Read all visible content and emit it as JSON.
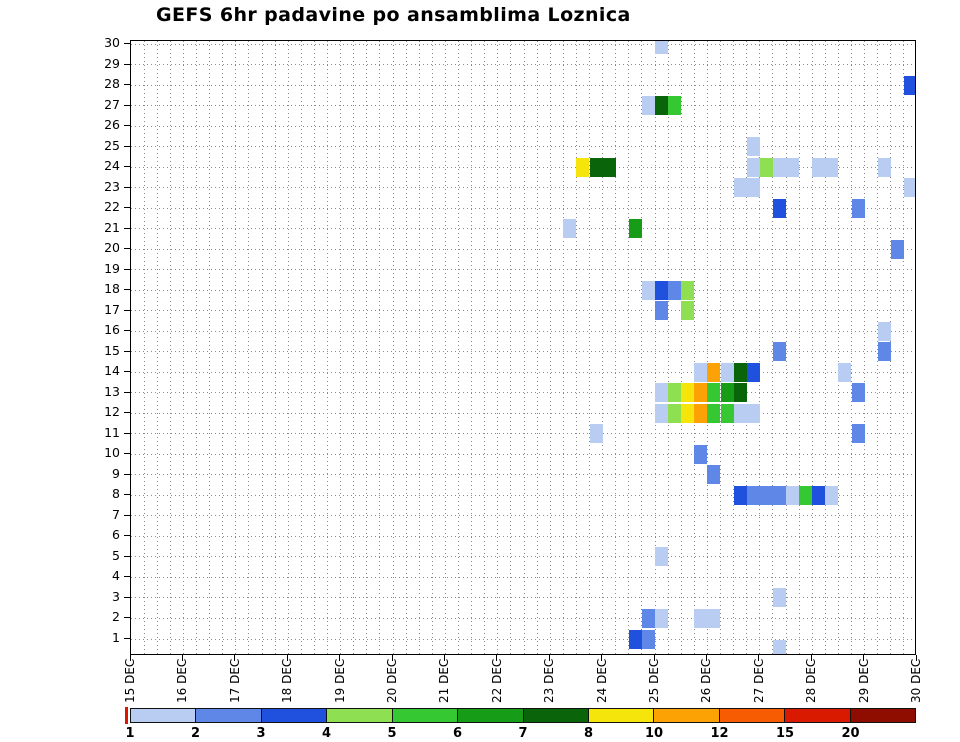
{
  "chart_data": {
    "type": "heatmap",
    "title": "GEFS 6hr padavine po ansamblima Loznica",
    "x_range_days": [
      0,
      15
    ],
    "day_offset_origin": "15 DEC",
    "cell_width_hours": 6,
    "y_range": [
      1,
      30
    ],
    "grid": "dotted",
    "x_tick_labels": [
      "15 DEC",
      "16 DEC",
      "17 DEC",
      "18 DEC",
      "19 DEC",
      "20 DEC",
      "21 DEC",
      "22 DEC",
      "23 DEC",
      "24 DEC",
      "25 DEC",
      "26 DEC",
      "27 DEC",
      "28 DEC",
      "29 DEC",
      "30 DEC"
    ],
    "y_tick_labels": [
      30,
      29,
      28,
      27,
      26,
      25,
      24,
      23,
      22,
      21,
      20,
      19,
      18,
      17,
      16,
      15,
      14,
      13,
      12,
      11,
      10,
      9,
      8,
      7,
      6,
      5,
      4,
      3,
      2,
      1
    ],
    "colorbar": {
      "position": "bottom",
      "tick_labels": [
        "1",
        "2",
        "3",
        "4",
        "5",
        "6",
        "7",
        "8",
        "10",
        "12",
        "15",
        "20"
      ],
      "colors": [
        "#b9cdf3",
        "#5e87e8",
        "#2050de",
        "#8fdf53",
        "#35c832",
        "#169c16",
        "#0a650a",
        "#f5e50a",
        "#fda205",
        "#f75c02",
        "#da1a00",
        "#8f0d00"
      ]
    },
    "cells": [
      {
        "member": 30,
        "day": 10.0,
        "level": 1
      },
      {
        "member": 28,
        "day": 14.75,
        "level": 3
      },
      {
        "member": 27,
        "day": 9.75,
        "level": 1
      },
      {
        "member": 27,
        "day": 10.0,
        "level": 7
      },
      {
        "member": 27,
        "day": 10.25,
        "level": 5
      },
      {
        "member": 25,
        "day": 11.75,
        "level": 1
      },
      {
        "member": 24,
        "day": 8.5,
        "level": 8
      },
      {
        "member": 24,
        "day": 8.75,
        "level": 7
      },
      {
        "member": 24,
        "day": 9.0,
        "level": 7
      },
      {
        "member": 24,
        "day": 11.75,
        "level": 1
      },
      {
        "member": 24,
        "day": 12.0,
        "level": 4
      },
      {
        "member": 24,
        "day": 12.25,
        "level": 1
      },
      {
        "member": 24,
        "day": 12.5,
        "level": 1
      },
      {
        "member": 24,
        "day": 13.0,
        "level": 1
      },
      {
        "member": 24,
        "day": 13.25,
        "level": 1
      },
      {
        "member": 24,
        "day": 14.25,
        "level": 1
      },
      {
        "member": 23,
        "day": 11.5,
        "level": 1
      },
      {
        "member": 23,
        "day": 11.75,
        "level": 1
      },
      {
        "member": 23,
        "day": 14.75,
        "level": 1
      },
      {
        "member": 22,
        "day": 12.25,
        "level": 3
      },
      {
        "member": 22,
        "day": 13.75,
        "level": 2
      },
      {
        "member": 21,
        "day": 8.25,
        "level": 1
      },
      {
        "member": 21,
        "day": 9.5,
        "level": 6
      },
      {
        "member": 20,
        "day": 14.5,
        "level": 2
      },
      {
        "member": 18,
        "day": 9.75,
        "level": 1
      },
      {
        "member": 18,
        "day": 10.0,
        "level": 3
      },
      {
        "member": 18,
        "day": 10.25,
        "level": 2
      },
      {
        "member": 18,
        "day": 10.5,
        "level": 4
      },
      {
        "member": 17,
        "day": 10.0,
        "level": 2
      },
      {
        "member": 17,
        "day": 10.5,
        "level": 4
      },
      {
        "member": 16,
        "day": 14.25,
        "level": 1
      },
      {
        "member": 15,
        "day": 12.25,
        "level": 2
      },
      {
        "member": 15,
        "day": 14.25,
        "level": 2
      },
      {
        "member": 14,
        "day": 10.75,
        "level": 1
      },
      {
        "member": 14,
        "day": 11.0,
        "level": 9
      },
      {
        "member": 14,
        "day": 11.25,
        "level": 1
      },
      {
        "member": 14,
        "day": 11.5,
        "level": 7
      },
      {
        "member": 14,
        "day": 11.75,
        "level": 3
      },
      {
        "member": 14,
        "day": 13.5,
        "level": 1
      },
      {
        "member": 13,
        "day": 10.0,
        "level": 1
      },
      {
        "member": 13,
        "day": 10.25,
        "level": 4
      },
      {
        "member": 13,
        "day": 10.5,
        "level": 8
      },
      {
        "member": 13,
        "day": 10.75,
        "level": 9
      },
      {
        "member": 13,
        "day": 11.0,
        "level": 5
      },
      {
        "member": 13,
        "day": 11.25,
        "level": 6
      },
      {
        "member": 13,
        "day": 11.5,
        "level": 7
      },
      {
        "member": 13,
        "day": 13.75,
        "level": 2
      },
      {
        "member": 12,
        "day": 10.0,
        "level": 1
      },
      {
        "member": 12,
        "day": 10.25,
        "level": 4
      },
      {
        "member": 12,
        "day": 10.5,
        "level": 8
      },
      {
        "member": 12,
        "day": 10.75,
        "level": 9
      },
      {
        "member": 12,
        "day": 11.0,
        "level": 5
      },
      {
        "member": 12,
        "day": 11.25,
        "level": 5
      },
      {
        "member": 12,
        "day": 11.5,
        "level": 1
      },
      {
        "member": 12,
        "day": 11.75,
        "level": 1
      },
      {
        "member": 11,
        "day": 8.75,
        "level": 1
      },
      {
        "member": 11,
        "day": 13.75,
        "level": 2
      },
      {
        "member": 10,
        "day": 10.75,
        "level": 2
      },
      {
        "member": 9,
        "day": 11.0,
        "level": 2
      },
      {
        "member": 8,
        "day": 11.5,
        "level": 3
      },
      {
        "member": 8,
        "day": 11.75,
        "level": 2
      },
      {
        "member": 8,
        "day": 12.0,
        "level": 2
      },
      {
        "member": 8,
        "day": 12.25,
        "level": 2
      },
      {
        "member": 8,
        "day": 12.5,
        "level": 1
      },
      {
        "member": 8,
        "day": 12.75,
        "level": 5
      },
      {
        "member": 8,
        "day": 13.0,
        "level": 3
      },
      {
        "member": 8,
        "day": 13.25,
        "level": 1
      },
      {
        "member": 5,
        "day": 10.0,
        "level": 1
      },
      {
        "member": 3,
        "day": 12.25,
        "level": 1
      },
      {
        "member": 2,
        "day": 9.75,
        "level": 2
      },
      {
        "member": 2,
        "day": 10.0,
        "level": 1
      },
      {
        "member": 2,
        "day": 10.75,
        "level": 1
      },
      {
        "member": 2,
        "day": 11.0,
        "level": 1
      },
      {
        "member": 1,
        "day": 9.5,
        "level": 3
      },
      {
        "member": 1,
        "day": 9.75,
        "level": 2
      },
      {
        "member": 0.5,
        "day": 12.25,
        "level": 1
      }
    ]
  }
}
